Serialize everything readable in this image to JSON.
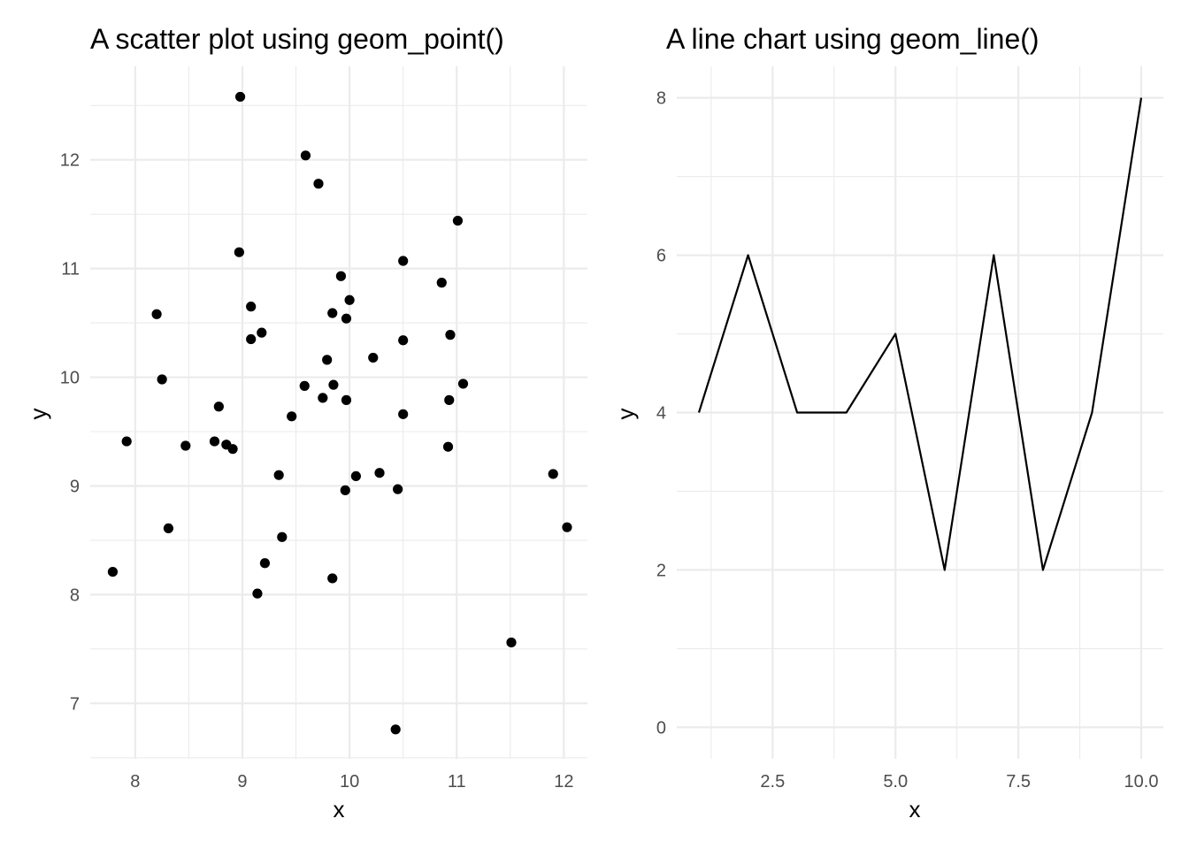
{
  "chart_data": [
    {
      "type": "scatter",
      "title": "A scatter plot using geom_point()",
      "xlabel": "x",
      "ylabel": "y",
      "xlim": [
        7.58,
        12.22
      ],
      "ylim": [
        6.49,
        12.86
      ],
      "x_ticks": [
        8,
        9,
        10,
        11,
        12
      ],
      "y_ticks": [
        7,
        8,
        9,
        10,
        11,
        12
      ],
      "grid": true,
      "x": [
        8.98,
        9.59,
        9.71,
        11.01,
        8.97,
        10.5,
        9.92,
        10.86,
        8.2,
        9.84,
        10.0,
        9.08,
        9.97,
        10.94,
        9.18,
        9.08,
        10.5,
        9.79,
        10.22,
        8.25,
        11.06,
        9.58,
        9.85,
        9.75,
        9.97,
        10.93,
        8.78,
        10.5,
        9.46,
        7.92,
        8.74,
        8.85,
        8.47,
        8.91,
        10.92,
        11.9,
        9.34,
        10.28,
        10.06,
        10.45,
        9.96,
        8.31,
        12.03,
        9.37,
        9.21,
        9.84,
        9.14,
        7.79,
        11.51,
        10.43
      ],
      "y": [
        12.58,
        12.04,
        11.78,
        11.44,
        11.15,
        11.07,
        10.93,
        10.87,
        10.58,
        10.59,
        10.71,
        10.65,
        10.54,
        10.39,
        10.41,
        10.35,
        10.34,
        10.16,
        10.18,
        9.98,
        9.94,
        9.92,
        9.93,
        9.81,
        9.79,
        9.79,
        9.73,
        9.66,
        9.64,
        9.41,
        9.41,
        9.38,
        9.37,
        9.34,
        9.36,
        9.11,
        9.1,
        9.12,
        9.09,
        8.97,
        8.96,
        8.61,
        8.62,
        8.53,
        8.29,
        8.15,
        8.01,
        8.21,
        7.56,
        6.76
      ]
    },
    {
      "type": "line",
      "title": "A line chart using geom_line()",
      "xlabel": "x",
      "ylabel": "y",
      "xlim": [
        0.55,
        10.45
      ],
      "ylim": [
        -0.4,
        8.4
      ],
      "x_ticks": [
        2.5,
        5.0,
        7.5,
        10.0
      ],
      "x_tick_labels": [
        "2.5",
        "5.0",
        "7.5",
        "10.0"
      ],
      "y_ticks": [
        0,
        2,
        4,
        6,
        8
      ],
      "grid": true,
      "x": [
        1,
        2,
        3,
        4,
        5,
        6,
        7,
        8,
        9,
        10
      ],
      "y": [
        4,
        6,
        4,
        4,
        5,
        2,
        6,
        2,
        4,
        8
      ]
    }
  ]
}
